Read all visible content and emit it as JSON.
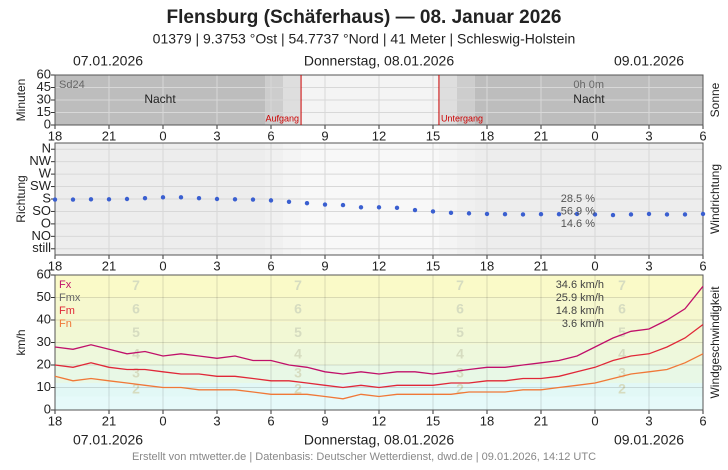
{
  "header": {
    "title": "Flensburg (Schäferhaus)  —  08. Januar 2026",
    "subtitle": "01379  |  9.3753 °Ost  |  54.7737 °Nord  |  41 Meter  |  Schleswig-Holstein"
  },
  "dates": {
    "left": "07.01.2026",
    "center": "Donnerstag, 08.01.2026",
    "right": "09.01.2026"
  },
  "footer": "Erstellt von mtwetter.de | Datenbasis: Deutscher Wetterdienst, dwd.de | 09.01.2026, 14:12 UTC",
  "chart_data": [
    {
      "type": "sunshine",
      "title": "Sonne",
      "y_label": "Minuten",
      "xlim": [
        0,
        36
      ],
      "xticks": [
        {
          "value": 0,
          "label": "18"
        },
        {
          "value": 3,
          "label": "21"
        },
        {
          "value": 6,
          "label": "0"
        },
        {
          "value": 9,
          "label": "3"
        },
        {
          "value": 12,
          "label": "6"
        },
        {
          "value": 15,
          "label": "9"
        },
        {
          "value": 18,
          "label": "12"
        },
        {
          "value": 21,
          "label": "15"
        },
        {
          "value": 24,
          "label": "18"
        },
        {
          "value": 27,
          "label": "21"
        },
        {
          "value": 30,
          "label": "0"
        },
        {
          "value": 33,
          "label": "3"
        },
        {
          "value": 36,
          "label": "6"
        }
      ],
      "ylim": [
        0,
        60
      ],
      "yticks": [
        0,
        15,
        30,
        45,
        60
      ],
      "sum_name": "Sd24",
      "sum_label": "0h 0m",
      "night_label": "Nacht",
      "sunrise": {
        "label": "Aufgang",
        "x": 13.67
      },
      "sunset": {
        "label": "Untergang",
        "x": 21.33
      },
      "sun_color": "#cc0000"
    },
    {
      "type": "scatter",
      "title": "Windrichtung",
      "y_label": "Richtung",
      "color": "#3a5fd0",
      "xlim": [
        0,
        36
      ],
      "xticks": [
        {
          "value": 0,
          "label": "18"
        },
        {
          "value": 3,
          "label": "21"
        },
        {
          "value": 6,
          "label": "0"
        },
        {
          "value": 9,
          "label": "3"
        },
        {
          "value": 12,
          "label": "6"
        },
        {
          "value": 15,
          "label": "9"
        },
        {
          "value": 18,
          "label": "12"
        },
        {
          "value": 21,
          "label": "15"
        },
        {
          "value": 24,
          "label": "18"
        },
        {
          "value": 27,
          "label": "21"
        },
        {
          "value": 30,
          "label": "0"
        },
        {
          "value": 33,
          "label": "3"
        },
        {
          "value": 36,
          "label": "6"
        }
      ],
      "ylim": [
        -22.5,
        382.5
      ],
      "yticks": [
        {
          "value": 360,
          "label": "N"
        },
        {
          "value": 315,
          "label": "NW"
        },
        {
          "value": 270,
          "label": "W"
        },
        {
          "value": 225,
          "label": "SW"
        },
        {
          "value": 180,
          "label": "S"
        },
        {
          "value": 135,
          "label": "SO"
        },
        {
          "value": 90,
          "label": "O"
        },
        {
          "value": 45,
          "label": "NO"
        },
        {
          "value": 0,
          "label": "still"
        }
      ],
      "x": [
        0,
        1,
        2,
        3,
        4,
        5,
        6,
        7,
        8,
        9,
        10,
        11,
        12,
        13,
        14,
        15,
        16,
        17,
        18,
        19,
        20,
        21,
        22,
        23,
        24,
        25,
        26,
        27,
        28,
        29,
        30,
        31,
        32,
        33,
        34,
        35,
        36
      ],
      "values": [
        178,
        178,
        179,
        179,
        180,
        183,
        186,
        186,
        183,
        180,
        179,
        178,
        175,
        170,
        165,
        160,
        158,
        150,
        150,
        148,
        140,
        135,
        130,
        128,
        126,
        125,
        124,
        125,
        125,
        126,
        124,
        122,
        124,
        126,
        124,
        124,
        126
      ],
      "shares": {
        "at": [
          180,
          135,
          90
        ],
        "values": [
          28.5,
          56.9,
          14.6
        ],
        "value_labels": [
          "28.5 %",
          "56.9 %",
          "14.6 %"
        ]
      }
    },
    {
      "type": "line",
      "title": "Windgeschwindigkeit",
      "y_label": "km/h",
      "xlim": [
        0,
        36
      ],
      "xticks": [
        {
          "value": 0,
          "label": "18"
        },
        {
          "value": 3,
          "label": "21"
        },
        {
          "value": 6,
          "label": "0"
        },
        {
          "value": 9,
          "label": "3"
        },
        {
          "value": 12,
          "label": "6"
        },
        {
          "value": 15,
          "label": "9"
        },
        {
          "value": 18,
          "label": "12"
        },
        {
          "value": 21,
          "label": "15"
        },
        {
          "value": 24,
          "label": "18"
        },
        {
          "value": 27,
          "label": "21"
        },
        {
          "value": 30,
          "label": "0"
        },
        {
          "value": 33,
          "label": "3"
        },
        {
          "value": 36,
          "label": "6"
        }
      ],
      "ylim": [
        0,
        60
      ],
      "yticks": [
        0,
        10,
        20,
        30,
        40,
        50,
        60
      ],
      "beaufort": {
        "labels": [
          "2",
          "3",
          "4",
          "5",
          "6",
          "7"
        ],
        "bounds": [
          6,
          12,
          20,
          29,
          39,
          50,
          62
        ],
        "colors": [
          "#e2f8f6",
          "#e8f8e6",
          "#eef8dc",
          "#f2f8d4",
          "#f6f8ce",
          "#fafac8"
        ],
        "base_color": "#e6fafa",
        "label_color": "#d6dcc0"
      },
      "x": [
        0,
        1,
        2,
        3,
        4,
        5,
        6,
        7,
        8,
        9,
        10,
        11,
        12,
        13,
        14,
        15,
        16,
        17,
        18,
        19,
        20,
        21,
        22,
        23,
        24,
        25,
        26,
        27,
        28,
        29,
        30,
        31,
        32,
        33,
        34,
        35,
        36
      ],
      "series": [
        {
          "name": "Fx",
          "color": "#c0106a",
          "summary": 34.6,
          "summary_label": "34.6 km/h",
          "values": [
            28,
            27,
            29,
            27,
            25,
            26,
            24,
            25,
            24,
            23,
            24,
            22,
            22,
            20,
            19,
            17,
            16,
            17,
            16,
            17,
            17,
            16,
            17,
            18,
            19,
            19,
            20,
            21,
            22,
            24,
            28,
            32,
            35,
            36,
            40,
            45,
            55
          ]
        },
        {
          "name": "Fmx",
          "color": "#666666",
          "summary": 25.9,
          "summary_label": "25.9 km/h"
        },
        {
          "name": "Fm",
          "color": "#e02838",
          "summary": 14.8,
          "summary_label": "14.8 km/h",
          "values": [
            20,
            19,
            21,
            19,
            18,
            18,
            17,
            16,
            16,
            15,
            15,
            14,
            13,
            13,
            12,
            11,
            10,
            11,
            10,
            11,
            11,
            11,
            12,
            12,
            13,
            13,
            14,
            14,
            15,
            17,
            19,
            22,
            24,
            25,
            28,
            32,
            38
          ]
        },
        {
          "name": "Fn",
          "color": "#f07838",
          "summary": 3.6,
          "summary_label": "3.6 km/h",
          "values": [
            15,
            13,
            14,
            13,
            12,
            11,
            10,
            10,
            9,
            9,
            9,
            8,
            7,
            7,
            7,
            6,
            5,
            7,
            6,
            7,
            7,
            7,
            7,
            8,
            8,
            8,
            9,
            9,
            10,
            11,
            12,
            14,
            16,
            17,
            18,
            21,
            25
          ]
        }
      ]
    }
  ]
}
